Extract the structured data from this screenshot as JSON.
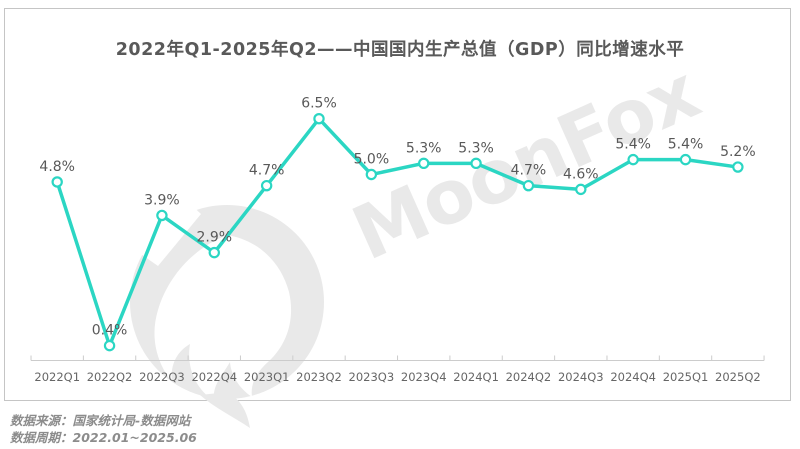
{
  "title": "2022年Q1-2025年Q2——中国国内生产总值（GDP）同比增速水平",
  "watermark": {
    "text": "MoonFox",
    "logo": "moonfox-moon-logo"
  },
  "footer": {
    "source": "数据来源：国家统计局-数据网站",
    "period": "数据周期：2022.01~2025.06"
  },
  "colors": {
    "line": "#2BD6C3",
    "marker_fill": "#FFFFFF",
    "value_label": "#595959",
    "title": "#595959",
    "axis": "#CCCCCC",
    "axis_label": "#666666",
    "frame_border": "#C5C5C5",
    "watermark": "#E9E9E9",
    "footer": "#8C8C8C",
    "background": "#FFFFFF"
  },
  "chart_data": {
    "type": "line",
    "title": "2022年Q1-2025年Q2——中国国内生产总值（GDP）同比增速水平",
    "categories": [
      "2022Q1",
      "2022Q2",
      "2022Q3",
      "2022Q4",
      "2023Q1",
      "2023Q2",
      "2023Q3",
      "2023Q4",
      "2024Q1",
      "2024Q2",
      "2024Q3",
      "2024Q4",
      "2025Q1",
      "2025Q2"
    ],
    "values": [
      4.8,
      0.4,
      3.9,
      2.9,
      4.7,
      6.5,
      5.0,
      5.3,
      5.3,
      4.7,
      4.6,
      5.4,
      5.4,
      5.2
    ],
    "unit": "%",
    "xlabel": "",
    "ylabel": "",
    "ylim": [
      0,
      7
    ],
    "grid": false,
    "legend": "none",
    "y_axis_shown": false,
    "marker": "circle-white-fill",
    "data_labels_shown": true
  }
}
